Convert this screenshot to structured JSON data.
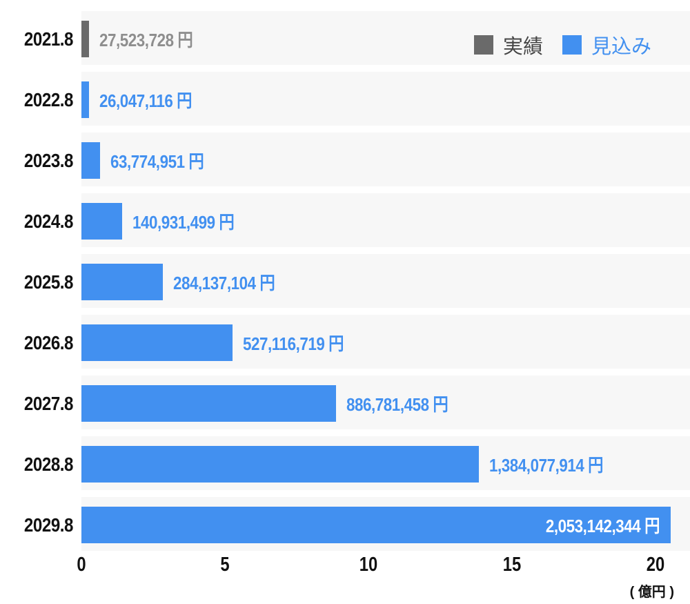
{
  "chart_data": {
    "type": "bar",
    "orientation": "horizontal",
    "title": "",
    "xlabel": "",
    "ylabel": "",
    "unit_note": "( 億円 )",
    "x_ticks": [
      0,
      5,
      10,
      15,
      20
    ],
    "xlim_oku": [
      0,
      21.2
    ],
    "grid": false,
    "legend_position": "top-right",
    "categories": [
      "2021.8",
      "2022.8",
      "2023.8",
      "2024.8",
      "2025.8",
      "2026.8",
      "2027.8",
      "2028.8",
      "2029.8"
    ],
    "rows": [
      {
        "category": "2021.8",
        "series": "実績",
        "value_yen": 27523728,
        "value_oku": 0.275,
        "label": "27,523,728 円"
      },
      {
        "category": "2022.8",
        "series": "見込み",
        "value_yen": 26047116,
        "value_oku": 0.26,
        "label": "26,047,116 円"
      },
      {
        "category": "2023.8",
        "series": "見込み",
        "value_yen": 63774951,
        "value_oku": 0.638,
        "label": "63,774,951 円"
      },
      {
        "category": "2024.8",
        "series": "見込み",
        "value_yen": 140931499,
        "value_oku": 1.409,
        "label": "140,931,499 円"
      },
      {
        "category": "2025.8",
        "series": "見込み",
        "value_yen": 284137104,
        "value_oku": 2.841,
        "label": "284,137,104 円"
      },
      {
        "category": "2026.8",
        "series": "見込み",
        "value_yen": 527116719,
        "value_oku": 5.271,
        "label": "527,116,719 円"
      },
      {
        "category": "2027.8",
        "series": "見込み",
        "value_yen": 886781458,
        "value_oku": 8.868,
        "label": "886,781,458 円"
      },
      {
        "category": "2028.8",
        "series": "見込み",
        "value_yen": 1384077914,
        "value_oku": 13.841,
        "label": "1,384,077,914 円"
      },
      {
        "category": "2029.8",
        "series": "見込み",
        "value_yen": 2053142344,
        "value_oku": 20.531,
        "label": "2,053,142,344 円"
      }
    ]
  },
  "legend": {
    "items": [
      {
        "label": "実績",
        "color": "#6a6a6a"
      },
      {
        "label": "見込み",
        "color": "#4290f0"
      }
    ]
  },
  "colors": {
    "forecast_blue": "#4290f0",
    "actual_gray": "#6a6a6a",
    "row_band_bg": "#f7f7f7",
    "axis_text": "#111111",
    "actual_value_text": "#8e8e8e",
    "legend_actual_text": "#464646",
    "inside_value_text": "#ffffff",
    "background": "#ffffff"
  }
}
